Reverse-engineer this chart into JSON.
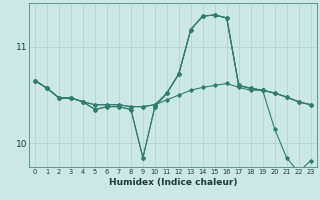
{
  "title": "",
  "xlabel": "Humidex (Indice chaleur)",
  "ylabel": "",
  "bg_color": "#cce8e5",
  "line_color": "#2e7d6e",
  "grid_color": "#b0d0cc",
  "xlim": [
    -0.5,
    23.5
  ],
  "ylim": [
    9.75,
    11.45
  ],
  "yticks": [
    10,
    11
  ],
  "xticks": [
    0,
    1,
    2,
    3,
    4,
    5,
    6,
    7,
    8,
    9,
    10,
    11,
    12,
    13,
    14,
    15,
    16,
    17,
    18,
    19,
    20,
    21,
    22,
    23
  ],
  "series": [
    {
      "x": [
        0,
        1,
        2,
        3,
        4,
        5,
        6,
        7,
        8,
        9,
        10,
        11,
        12,
        13,
        14,
        15,
        16,
        17,
        18,
        19,
        20,
        21,
        22,
        23
      ],
      "y": [
        10.65,
        10.57,
        10.47,
        10.47,
        10.43,
        10.4,
        10.4,
        10.4,
        10.38,
        10.38,
        10.4,
        10.45,
        10.5,
        10.55,
        10.58,
        10.6,
        10.62,
        10.58,
        10.55,
        10.55,
        10.52,
        10.48,
        10.43,
        10.4
      ]
    },
    {
      "x": [
        0,
        1,
        2,
        3,
        4,
        5,
        6,
        7,
        8,
        9,
        10,
        11,
        12,
        13,
        14,
        15,
        16,
        17,
        18,
        19,
        20,
        21,
        22,
        23
      ],
      "y": [
        10.65,
        10.57,
        10.47,
        10.47,
        10.43,
        10.4,
        10.4,
        10.4,
        10.38,
        10.38,
        10.4,
        10.52,
        10.72,
        11.18,
        11.32,
        11.33,
        11.3,
        10.6,
        10.57,
        10.55,
        10.52,
        10.48,
        10.43,
        10.4
      ]
    },
    {
      "x": [
        0,
        1,
        2,
        3,
        4,
        5,
        6,
        7,
        8,
        9,
        10,
        11,
        12,
        13,
        14,
        15,
        16,
        17,
        18,
        19,
        20,
        21,
        22,
        23
      ],
      "y": [
        10.65,
        10.57,
        10.47,
        10.47,
        10.43,
        10.35,
        10.38,
        10.38,
        10.35,
        9.85,
        10.38,
        10.52,
        10.72,
        11.18,
        11.32,
        11.33,
        11.3,
        10.6,
        10.57,
        10.55,
        10.52,
        10.48,
        10.43,
        10.4
      ]
    },
    {
      "x": [
        0,
        1,
        2,
        3,
        4,
        5,
        6,
        7,
        8,
        9,
        10,
        11,
        12,
        13,
        14,
        15,
        16,
        17,
        18,
        19,
        20,
        21,
        22,
        23
      ],
      "y": [
        10.65,
        10.57,
        10.47,
        10.47,
        10.43,
        10.35,
        10.38,
        10.38,
        10.35,
        9.85,
        10.38,
        10.52,
        10.72,
        11.18,
        11.32,
        11.33,
        11.3,
        10.6,
        10.57,
        10.55,
        10.15,
        9.85,
        9.7,
        9.82
      ]
    }
  ]
}
